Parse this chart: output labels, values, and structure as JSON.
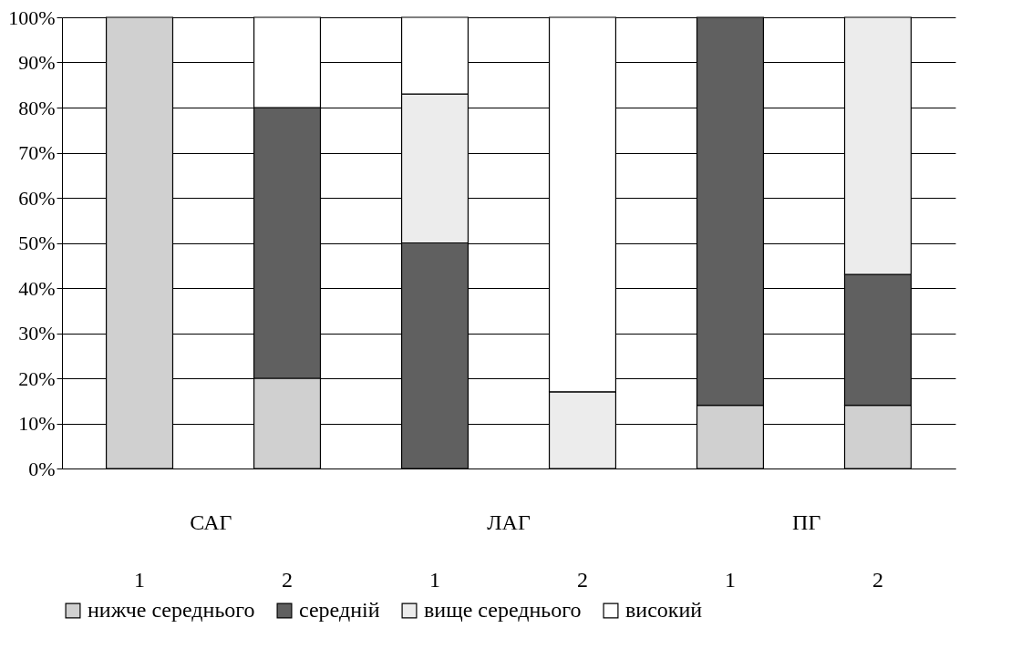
{
  "chart_data": {
    "type": "bar",
    "stacked": true,
    "categories": [
      "1",
      "2",
      "1",
      "2",
      "1",
      "2"
    ],
    "annotations": [
      "САГ",
      "ЛАГ",
      "ПГ"
    ],
    "series": [
      {
        "name": "нижче середнього",
        "color": "#d0d0d0",
        "values": [
          100,
          20,
          0,
          0,
          14,
          14
        ]
      },
      {
        "name": "середній",
        "color": "#606060",
        "values": [
          0,
          60,
          50,
          0,
          86,
          29
        ]
      },
      {
        "name": "вище середнього",
        "color": "#ececec",
        "values": [
          0,
          0,
          33,
          17,
          0,
          57
        ]
      },
      {
        "name": "високий",
        "color": "#ffffff",
        "values": [
          0,
          20,
          17,
          83,
          0,
          0
        ]
      }
    ],
    "ylim": [
      0,
      100
    ],
    "yticks": [
      {
        "value": 0,
        "label": "0%"
      },
      {
        "value": 10,
        "label": "10%"
      },
      {
        "value": 20,
        "label": "20%"
      },
      {
        "value": 30,
        "label": "30%"
      },
      {
        "value": 40,
        "label": "40%"
      },
      {
        "value": 50,
        "label": "50%"
      },
      {
        "value": 60,
        "label": "60%"
      },
      {
        "value": 70,
        "label": "70%"
      },
      {
        "value": 80,
        "label": "80%"
      },
      {
        "value": 90,
        "label": "90%"
      },
      {
        "value": 100,
        "label": "100%"
      }
    ],
    "grid": "y",
    "legend": "bottom"
  }
}
